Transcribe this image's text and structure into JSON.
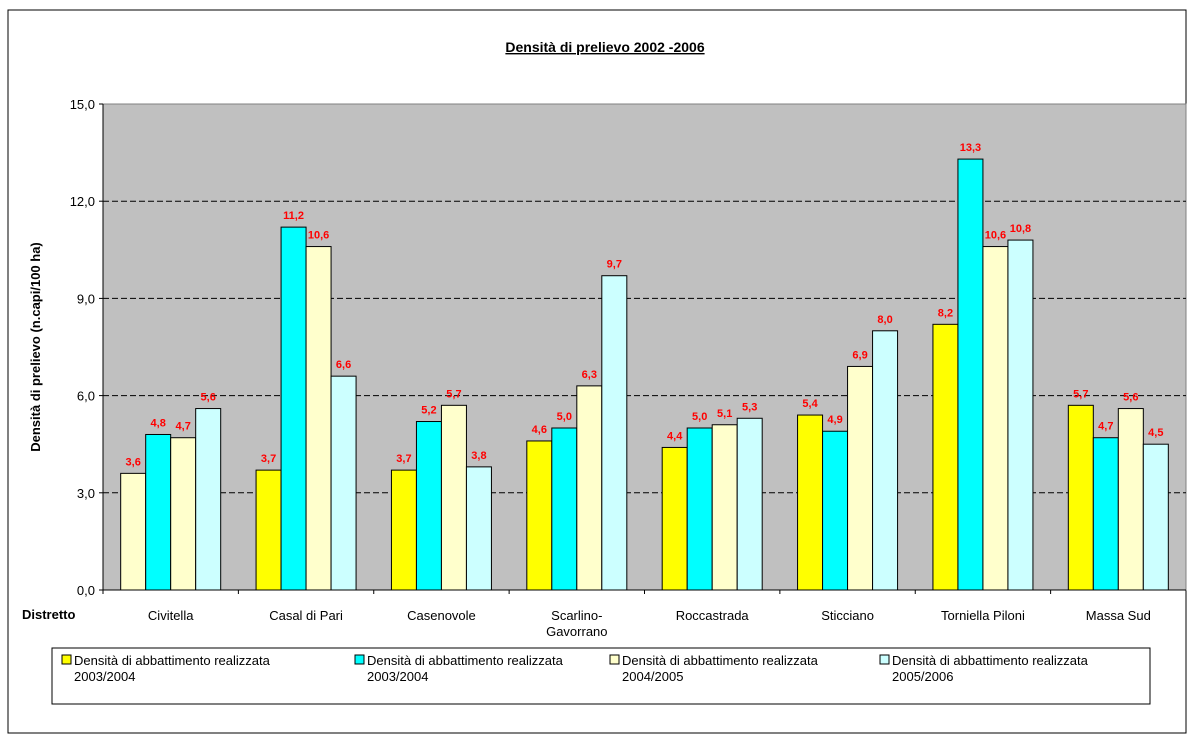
{
  "chart_data": {
    "type": "bar",
    "title": "Densità di prelievo 2002 -2006",
    "y_label": "Densità di prelievo (n.capi/100 ha)",
    "x_label": "Distretto",
    "categories": [
      "Civitella",
      "Casal di Pari",
      "Casenovole",
      "Scarlino-\nGavorrano",
      "Roccastrada",
      "Sticciano",
      "Torniella Piloni",
      "Massa Sud"
    ],
    "series": [
      {
        "name": "Densità di abbattimento realizzata\n2003/2004",
        "color": "#ffff00",
        "point_colors": [
          "#ffffcc",
          "#ffff00",
          "#ffff00",
          "#ffff00",
          "#ffff00",
          "#ffff00",
          "#ffff00",
          "#ffff00"
        ],
        "values": [
          3.6,
          3.7,
          3.7,
          4.6,
          4.4,
          5.4,
          8.2,
          5.7
        ],
        "value_labels": [
          "3,6",
          "3,7",
          "3,7",
          "4,6",
          "4,4",
          "5,4",
          "8,2",
          "5,7"
        ]
      },
      {
        "name": "Densità di abbattimento realizzata\n2003/2004",
        "color": "#00ffff",
        "values": [
          4.8,
          11.2,
          5.2,
          5.0,
          5.0,
          4.9,
          13.3,
          4.7
        ],
        "value_labels": [
          "4,8",
          "11,2",
          "5,2",
          "5,0",
          "5,0",
          "4,9",
          "13,3",
          "4,7"
        ]
      },
      {
        "name": "Densità  di abbattimento realizzata\n2004/2005",
        "color": "#ffffcc",
        "values": [
          4.7,
          10.6,
          5.7,
          6.3,
          5.1,
          6.9,
          10.6,
          5.6
        ],
        "value_labels": [
          "4,7",
          "10,6",
          "5,7",
          "6,3",
          "5,1",
          "6,9",
          "10,6",
          "5,6"
        ]
      },
      {
        "name": "Densità  di abbattimento realizzata\n2005/2006",
        "color": "#ccffff",
        "values": [
          5.6,
          6.6,
          3.8,
          9.7,
          5.3,
          8.0,
          10.8,
          4.5
        ],
        "value_labels": [
          "5,6",
          "6,6",
          "3,8",
          "9,7",
          "5,3",
          "8,0",
          "10,8",
          "4,5"
        ]
      }
    ],
    "ylim": [
      0,
      15
    ],
    "yticks": [
      {
        "value": 0,
        "label": "0,0"
      },
      {
        "value": 3,
        "label": "3,0"
      },
      {
        "value": 6,
        "label": "6,0"
      },
      {
        "value": 9,
        "label": "9,0"
      },
      {
        "value": 12,
        "label": "12,0"
      },
      {
        "value": 15,
        "label": "15,0"
      }
    ],
    "grid": true,
    "plot_background": "#c0c0c0",
    "value_label_color": "#ff0000"
  }
}
